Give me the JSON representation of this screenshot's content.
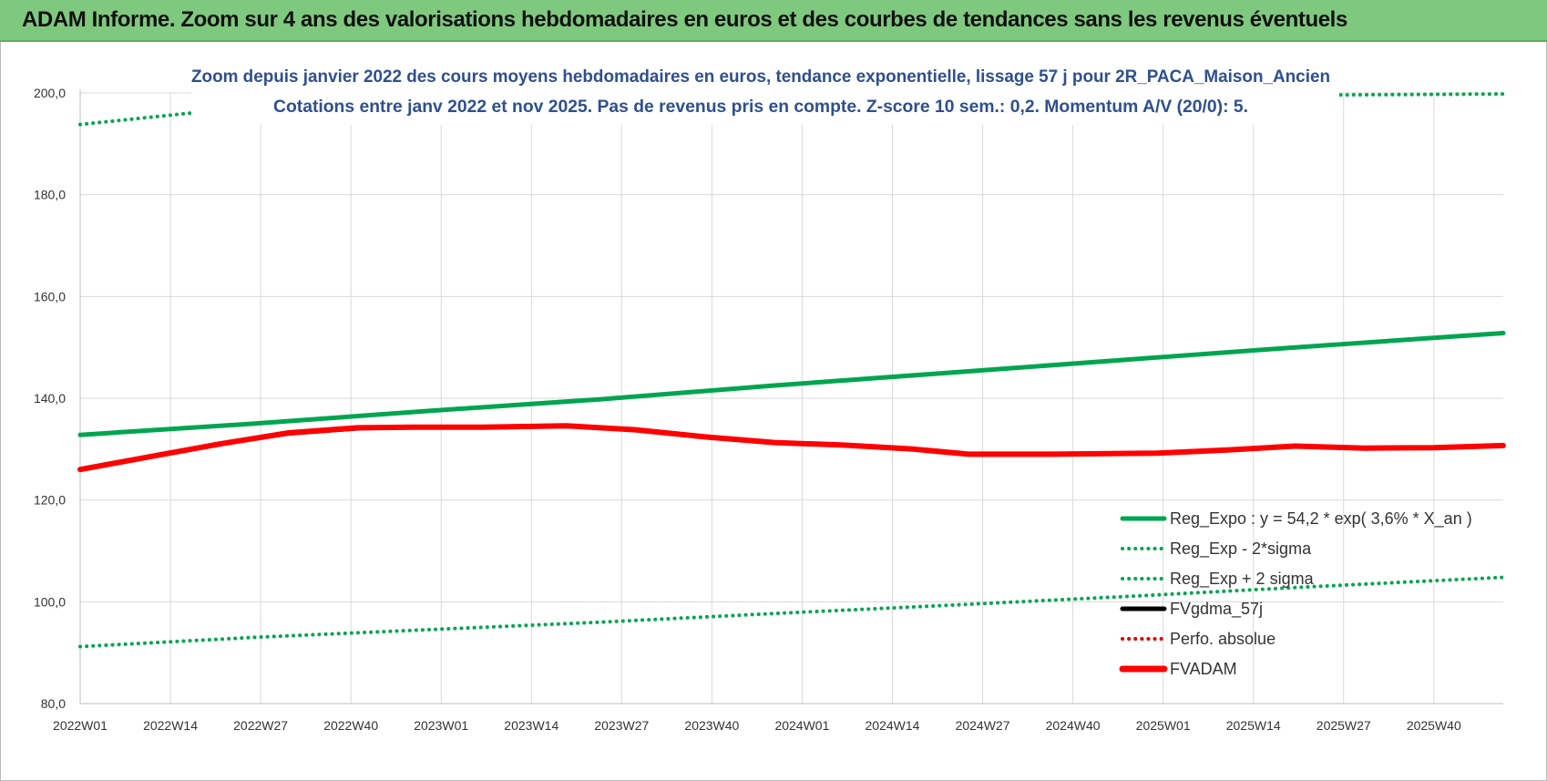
{
  "banner": {
    "title": "ADAM Informe. Zoom sur 4 ans des valorisations hebdomadaires en euros et des courbes de tendances sans les revenus éventuels",
    "color": "#7fc97f"
  },
  "chart_data": {
    "type": "line",
    "title": "Zoom depuis janvier 2022 des cours moyens hebdomadaires en euros, tendance exponentielle, lissage 57 j pour 2R_PACA_Maison_Ancien",
    "subtitle": "Cotations entre janv 2022 et nov 2025. Pas de revenus pris en compte. Z-score 10 sem.: 0,2. Momentum A/V (20/0): 5.",
    "xlabel": "",
    "ylabel": "",
    "ylim": [
      80,
      200
    ],
    "y_ticks": [
      "80,0",
      "100,0",
      "120,0",
      "140,0",
      "160,0",
      "180,0",
      "200,0"
    ],
    "x_tick_labels": [
      "2022W01",
      "2022W14",
      "2022W27",
      "2022W40",
      "2023W01",
      "2023W14",
      "2023W27",
      "2023W40",
      "2024W01",
      "2024W14",
      "2024W27",
      "2024W40",
      "2025W01",
      "2025W14",
      "2025W27",
      "2025W40"
    ],
    "x_ticks_week_index": [
      0,
      13,
      26,
      39,
      52,
      65,
      78,
      91,
      104,
      117,
      130,
      143,
      156,
      169,
      182,
      195
    ],
    "x_range_weeks": [
      0,
      205
    ],
    "grid": true,
    "legend_position": "bottom-right",
    "series": [
      {
        "name": "Reg_Expo : y = 54,2 * exp( 3,6% *  X_an )",
        "color": "#00a550",
        "style": "solid",
        "points": [
          [
            0,
            132.8
          ],
          [
            25,
            135.0
          ],
          [
            50,
            137.5
          ],
          [
            75,
            139.8
          ],
          [
            100,
            142.5
          ],
          [
            125,
            145.0
          ],
          [
            150,
            147.5
          ],
          [
            175,
            150.0
          ],
          [
            205,
            152.8
          ]
        ]
      },
      {
        "name": "Reg_Exp - 2*sigma",
        "color": "#00a550",
        "style": "dotted",
        "points": [
          [
            0,
            91.2
          ],
          [
            25,
            93.0
          ],
          [
            50,
            94.5
          ],
          [
            75,
            96.0
          ],
          [
            100,
            97.7
          ],
          [
            125,
            99.3
          ],
          [
            150,
            101.0
          ],
          [
            175,
            102.8
          ],
          [
            205,
            104.8
          ]
        ]
      },
      {
        "name": "Reg_Exp + 2 sigma",
        "color": "#00a550",
        "style": "dotted",
        "points": [
          [
            0,
            193.8
          ],
          [
            17,
            196.2
          ],
          [
            170,
            198.6
          ],
          [
            180,
            199.6
          ],
          [
            205,
            199.8
          ]
        ]
      },
      {
        "name": "FVgdma_57j",
        "color": "#000000",
        "style": "solid",
        "points": [
          [
            0,
            126.0
          ],
          [
            10,
            128.5
          ],
          [
            20,
            131.0
          ],
          [
            30,
            133.0
          ],
          [
            40,
            134.0
          ],
          [
            48,
            134.3
          ],
          [
            58,
            134.3
          ],
          [
            70,
            134.6
          ],
          [
            80,
            133.8
          ],
          [
            90,
            132.4
          ],
          [
            100,
            131.3
          ],
          [
            110,
            130.8
          ],
          [
            120,
            130.0
          ],
          [
            128,
            129.0
          ],
          [
            140,
            129.0
          ],
          [
            155,
            129.2
          ],
          [
            165,
            129.8
          ],
          [
            175,
            130.6
          ],
          [
            185,
            130.2
          ],
          [
            195,
            130.3
          ],
          [
            205,
            130.7
          ]
        ]
      },
      {
        "name": "Perfo. absolue",
        "color": "#e00000",
        "style": "dotted",
        "points": []
      },
      {
        "name": "FVADAM",
        "color": "#ff0000",
        "style": "solid",
        "points": [
          [
            0,
            126.0
          ],
          [
            10,
            128.5
          ],
          [
            20,
            131.0
          ],
          [
            30,
            133.2
          ],
          [
            40,
            134.2
          ],
          [
            48,
            134.3
          ],
          [
            58,
            134.3
          ],
          [
            70,
            134.6
          ],
          [
            80,
            133.8
          ],
          [
            90,
            132.4
          ],
          [
            100,
            131.3
          ],
          [
            110,
            130.8
          ],
          [
            120,
            130.0
          ],
          [
            128,
            129.0
          ],
          [
            140,
            129.0
          ],
          [
            155,
            129.2
          ],
          [
            165,
            129.8
          ],
          [
            175,
            130.6
          ],
          [
            185,
            130.2
          ],
          [
            195,
            130.3
          ],
          [
            205,
            130.7
          ]
        ]
      }
    ]
  }
}
